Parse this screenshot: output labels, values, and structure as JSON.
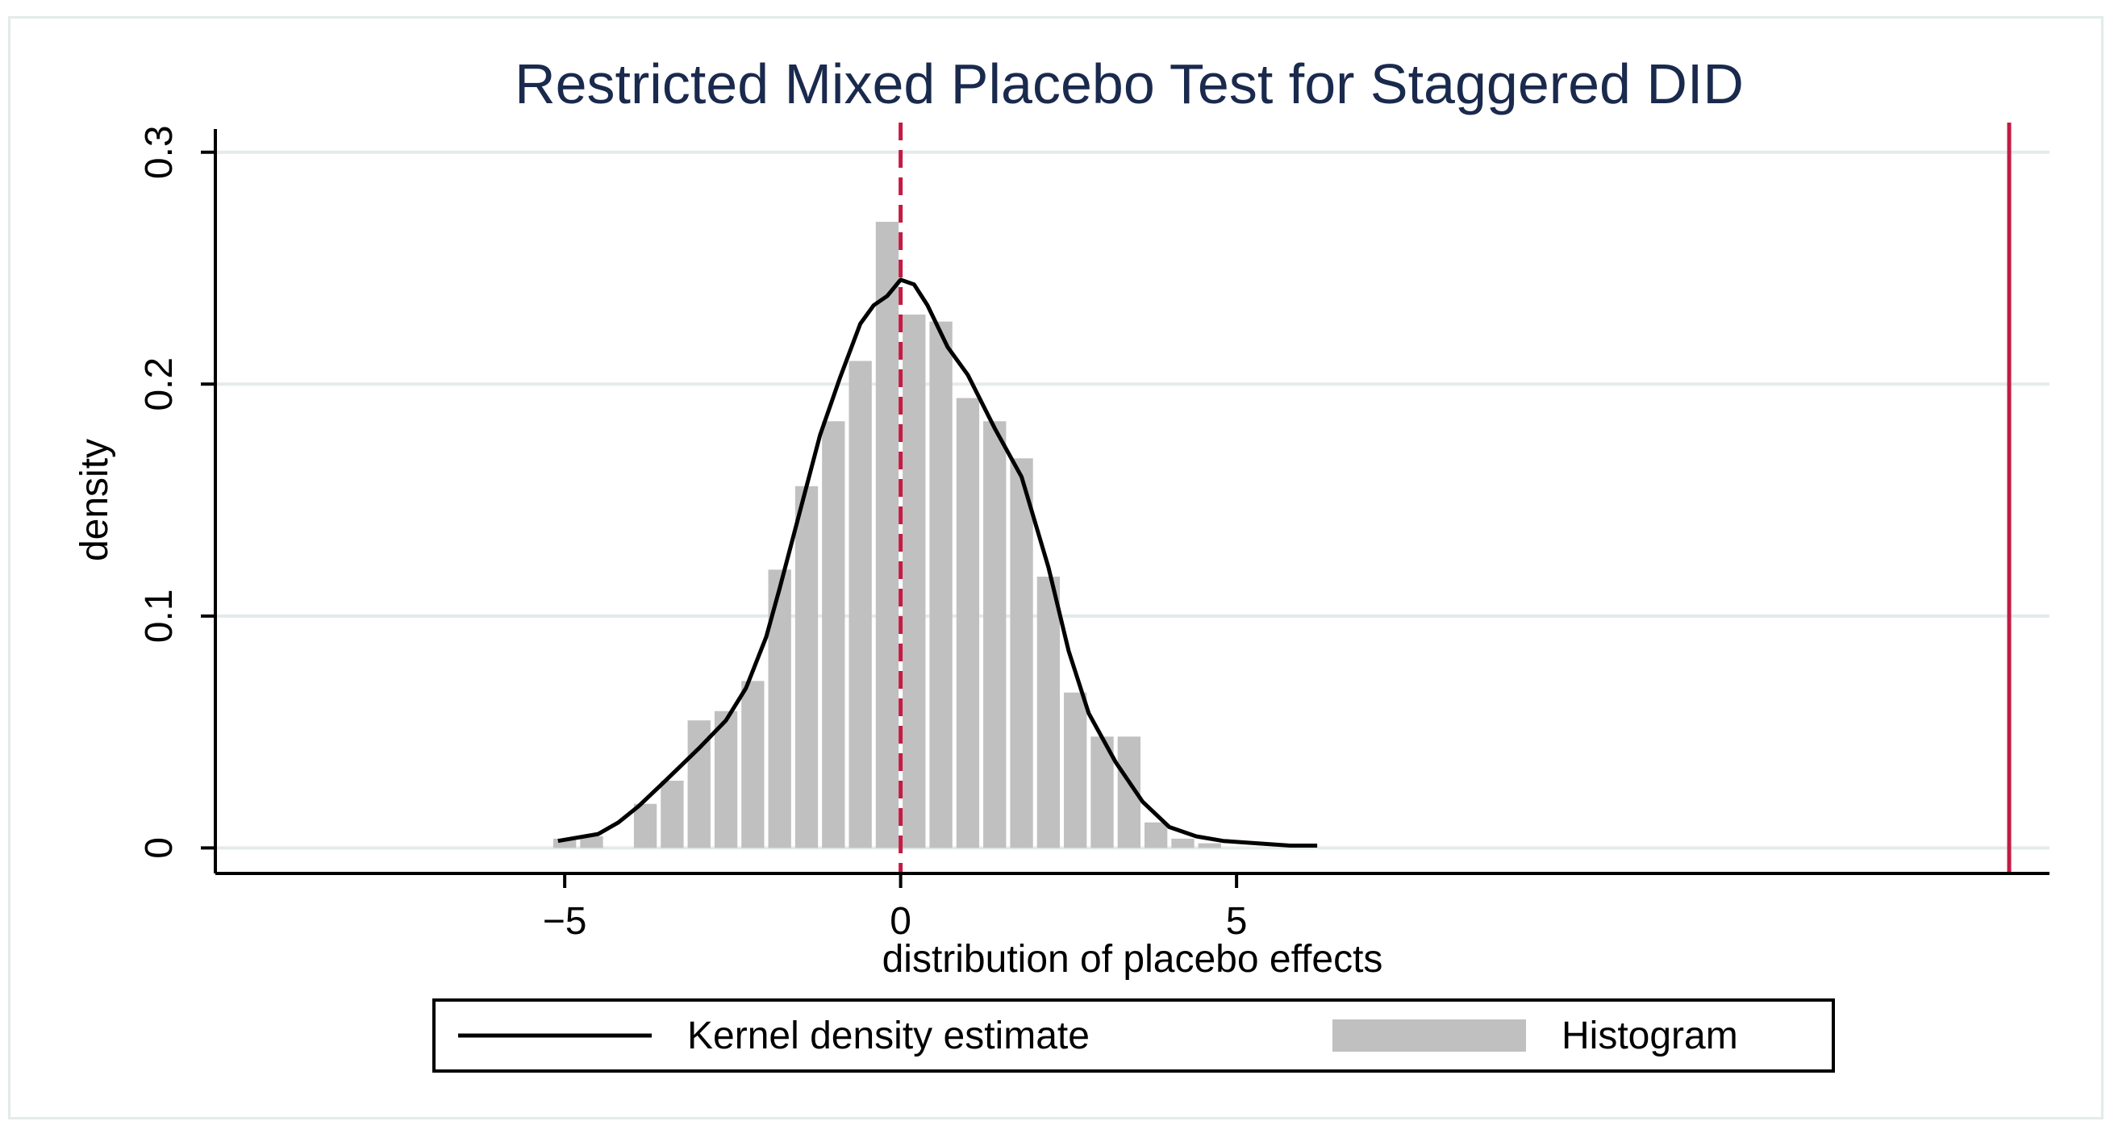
{
  "chart_data": {
    "type": "histogram",
    "title": "Restricted Mixed Placebo Test for Staggered DID",
    "xlabel": "distribution of placebo effects",
    "ylabel": "density",
    "xlim": [
      -10.2,
      17.1
    ],
    "ylim": [
      -0.011,
      0.31
    ],
    "xticks": [
      -5,
      0,
      5
    ],
    "xtick_labels": [
      "−5",
      "0",
      "5"
    ],
    "yticks": [
      0,
      0.1,
      0.2,
      0.3
    ],
    "ytick_labels": [
      "0",
      "0.1",
      "0.2",
      "0.3"
    ],
    "grid": true,
    "bin_width": 0.4,
    "histogram": {
      "name": "Histogram",
      "color": "#c0c0c0",
      "bins": [
        {
          "x": -5.0,
          "y": 0.004
        },
        {
          "x": -4.6,
          "y": 0.005
        },
        {
          "x": -4.2,
          "y": 0.0
        },
        {
          "x": -3.8,
          "y": 0.019
        },
        {
          "x": -3.4,
          "y": 0.029
        },
        {
          "x": -3.0,
          "y": 0.055
        },
        {
          "x": -2.6,
          "y": 0.059
        },
        {
          "x": -2.2,
          "y": 0.072
        },
        {
          "x": -1.8,
          "y": 0.12
        },
        {
          "x": -1.4,
          "y": 0.156
        },
        {
          "x": -1.0,
          "y": 0.184
        },
        {
          "x": -0.6,
          "y": 0.21
        },
        {
          "x": -0.2,
          "y": 0.27
        },
        {
          "x": 0.2,
          "y": 0.23
        },
        {
          "x": 0.6,
          "y": 0.227
        },
        {
          "x": 1.0,
          "y": 0.194
        },
        {
          "x": 1.4,
          "y": 0.184
        },
        {
          "x": 1.8,
          "y": 0.168
        },
        {
          "x": 2.2,
          "y": 0.117
        },
        {
          "x": 2.6,
          "y": 0.067
        },
        {
          "x": 3.0,
          "y": 0.048
        },
        {
          "x": 3.4,
          "y": 0.048
        },
        {
          "x": 3.8,
          "y": 0.011
        },
        {
          "x": 4.2,
          "y": 0.004
        },
        {
          "x": 4.6,
          "y": 0.002
        }
      ]
    },
    "kde": {
      "name": "Kernel density estimate",
      "color": "#000000",
      "x": [
        -5.1,
        -4.5,
        -4.2,
        -3.9,
        -3.5,
        -3.0,
        -2.6,
        -2.3,
        -2.0,
        -1.8,
        -1.5,
        -1.2,
        -0.9,
        -0.6,
        -0.4,
        -0.2,
        0.0,
        0.2,
        0.4,
        0.7,
        1.0,
        1.4,
        1.8,
        2.2,
        2.5,
        2.8,
        3.2,
        3.6,
        4.0,
        4.4,
        4.8,
        5.3,
        5.8,
        6.2
      ],
      "y": [
        0.003,
        0.006,
        0.011,
        0.018,
        0.029,
        0.043,
        0.055,
        0.069,
        0.091,
        0.112,
        0.145,
        0.178,
        0.203,
        0.226,
        0.234,
        0.238,
        0.245,
        0.243,
        0.234,
        0.216,
        0.204,
        0.181,
        0.16,
        0.121,
        0.085,
        0.058,
        0.037,
        0.02,
        0.009,
        0.005,
        0.003,
        0.002,
        0.001,
        0.001
      ]
    },
    "reference_lines": [
      {
        "name": "zero line",
        "x": 0,
        "style": "dashed",
        "color": "#c41a44"
      },
      {
        "name": "actual estimate",
        "x": 16.5,
        "style": "solid",
        "color": "#c41a44"
      }
    ],
    "legend": {
      "position": "bottom-center",
      "entries": [
        "Kernel density estimate",
        "Histogram"
      ]
    }
  }
}
